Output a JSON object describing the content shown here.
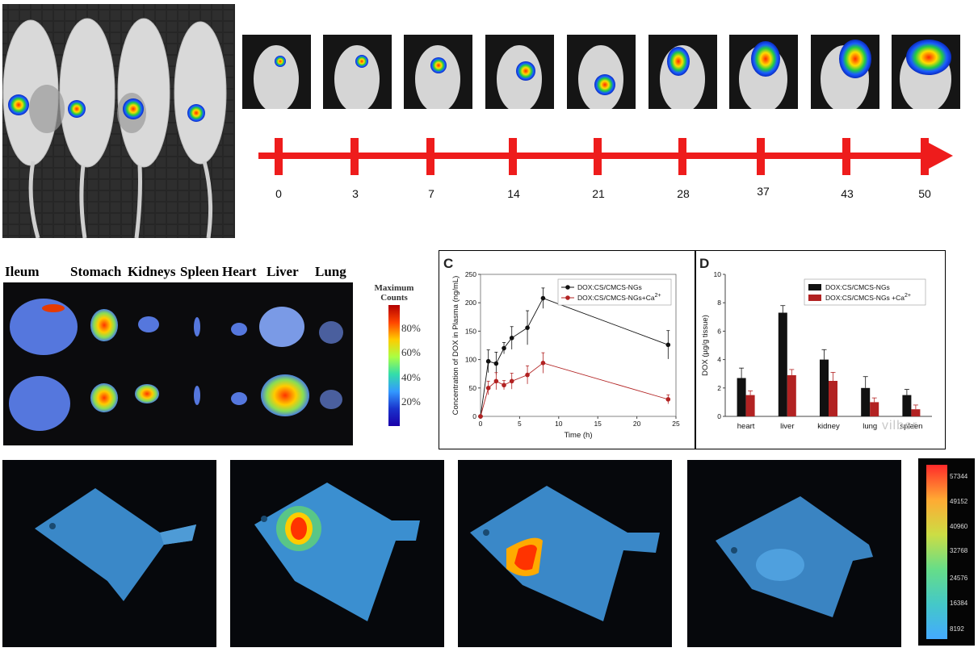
{
  "timeline": {
    "labels": [
      "0",
      "3",
      "7",
      "14",
      "21",
      "28",
      "37",
      "43",
      "50"
    ]
  },
  "organs": {
    "names": [
      "Ileum",
      "Stomach",
      "Kidneys",
      "Spleen",
      "Heart",
      "Liver",
      "Lung"
    ],
    "colorbar_title_1": "Maximum",
    "colorbar_title_2": "Counts",
    "colorbar_ticks": [
      "80%",
      "60%",
      "40%",
      "20%"
    ]
  },
  "watermark": "vilber",
  "fish_colorbar_ticks": [
    "57344",
    "49152",
    "40960",
    "32768",
    "24576",
    "16384",
    "8192"
  ],
  "colors": {
    "arrow": "#ee1c1c",
    "series_black": "#111111",
    "series_red": "#b22222"
  },
  "chart_data": [
    {
      "type": "line",
      "panel_label": "C",
      "xlabel": "Time (h)",
      "ylabel": "Concentration of DOX in Plasma (ng/mL)",
      "xlim": [
        0,
        25
      ],
      "ylim": [
        0,
        250
      ],
      "xticks": [
        "0",
        "5",
        "10",
        "15",
        "20",
        "25"
      ],
      "yticks": [
        "0",
        "50",
        "100",
        "150",
        "200",
        "250"
      ],
      "legend_position": "top-right",
      "series": [
        {
          "name": "DOX:CS/CMCS-NGs",
          "x": [
            0,
            1,
            2,
            3,
            4,
            6,
            8,
            24
          ],
          "y": [
            0,
            97,
            93,
            120,
            138,
            156,
            208,
            126
          ],
          "err": [
            0,
            20,
            20,
            10,
            20,
            30,
            18,
            25
          ]
        },
        {
          "name": "DOX:CS/CMCS-NGs+Ca",
          "name_sup": "2+",
          "x": [
            0,
            1,
            2,
            3,
            4,
            6,
            8,
            24
          ],
          "y": [
            0,
            50,
            62,
            55,
            62,
            73,
            94,
            30
          ],
          "err": [
            0,
            12,
            15,
            8,
            14,
            16,
            18,
            8
          ]
        }
      ]
    },
    {
      "type": "bar",
      "panel_label": "D",
      "ylabel": "DOX (µg/g tissue)",
      "ylim": [
        0,
        10
      ],
      "yticks": [
        "0",
        "2",
        "4",
        "6",
        "8",
        "10"
      ],
      "categories": [
        "heart",
        "liver",
        "kidney",
        "lung",
        "spleen"
      ],
      "legend_position": "top-right",
      "series": [
        {
          "name": "DOX:CS/CMCS-NGs",
          "values": [
            2.7,
            7.3,
            4.0,
            2.0,
            1.5
          ],
          "err": [
            0.7,
            0.5,
            0.7,
            0.8,
            0.4
          ]
        },
        {
          "name": "DOX:CS/CMCS-NGs +Ca",
          "name_sup": "2+",
          "values": [
            1.5,
            2.9,
            2.5,
            1.0,
            0.5
          ],
          "err": [
            0.3,
            0.4,
            0.6,
            0.3,
            0.3
          ]
        }
      ]
    }
  ]
}
